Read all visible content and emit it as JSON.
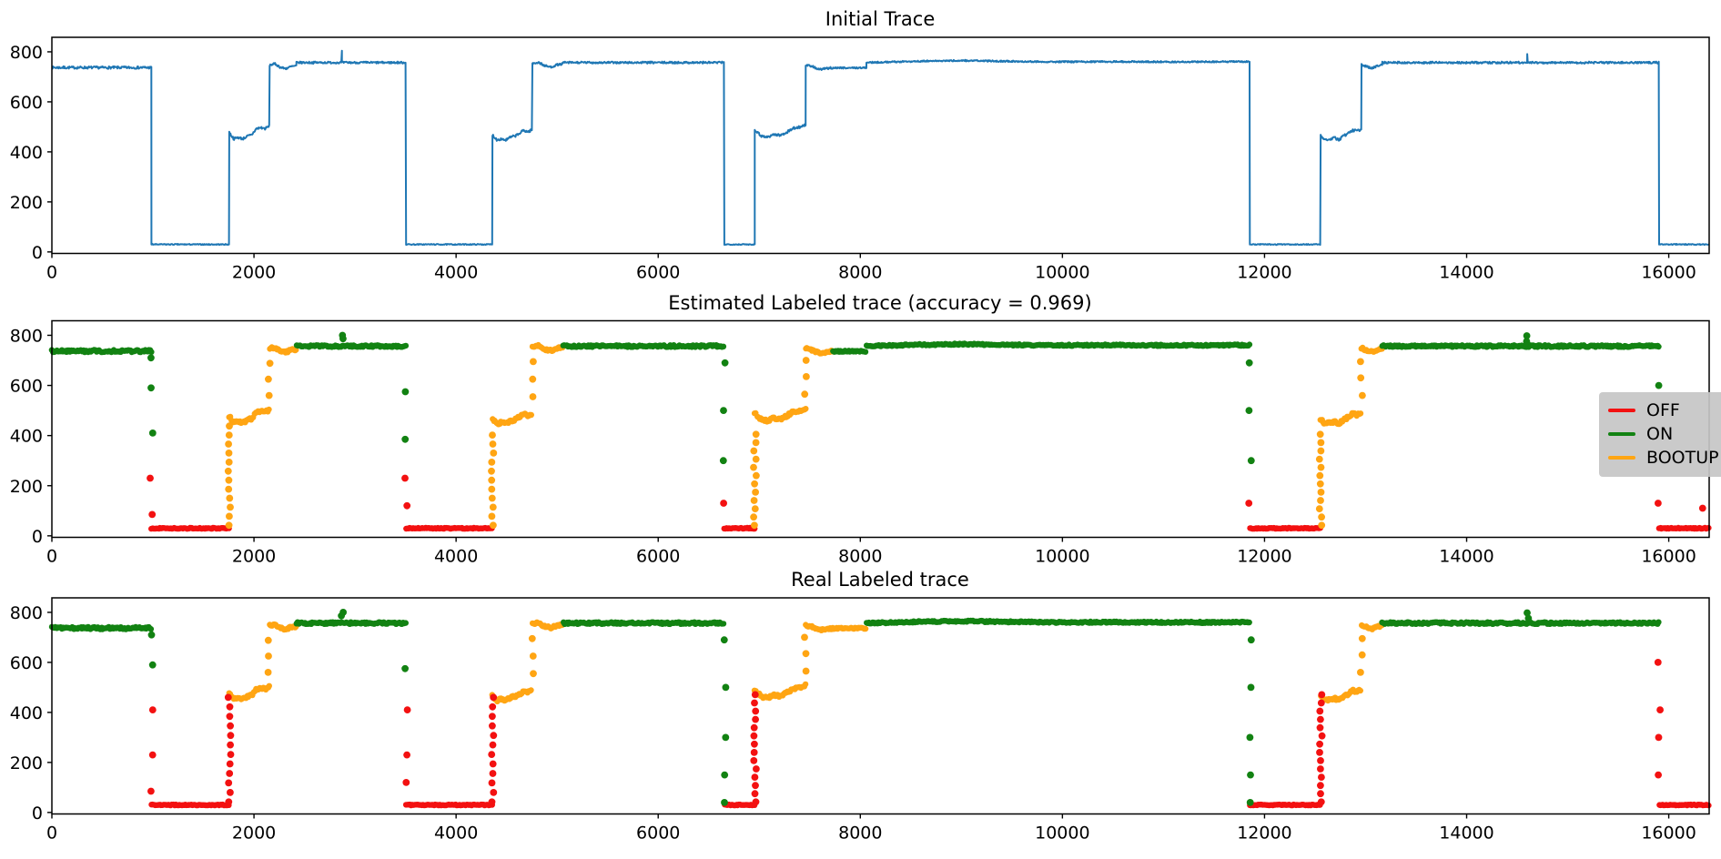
{
  "colors": {
    "line": "#1f77b4",
    "OFF": "#f31111",
    "ON": "#128212",
    "BOOTUP": "#ffa513",
    "axis": "#000000",
    "legend_bg": "#c5c5c5"
  },
  "chart_data": [
    {
      "type": "line",
      "title": "Initial Trace",
      "xlabel": "",
      "ylabel": "",
      "x_ticks": [
        0,
        2000,
        4000,
        6000,
        8000,
        10000,
        12000,
        14000,
        16000
      ],
      "y_ticks": [
        0,
        200,
        400,
        600,
        800
      ],
      "xlim": [
        0,
        16400
      ],
      "ylim": [
        -6,
        858
      ],
      "grid": false,
      "series_color_key": "line"
    },
    {
      "type": "scatter",
      "title": "Estimated Labeled trace (accuracy = 0.969)",
      "accuracy": 0.969,
      "x_ticks": [
        0,
        2000,
        4000,
        6000,
        8000,
        10000,
        12000,
        14000,
        16000
      ],
      "y_ticks": [
        0,
        200,
        400,
        600,
        800
      ],
      "xlim": [
        0,
        16400
      ],
      "ylim": [
        -6,
        858
      ],
      "grid": false,
      "labels_key": "est",
      "legend": {
        "position": "right",
        "items": [
          {
            "label": "OFF"
          },
          {
            "label": "ON"
          },
          {
            "label": "BOOTUP"
          }
        ]
      }
    },
    {
      "type": "scatter",
      "title": "Real Labeled trace",
      "x_ticks": [
        0,
        2000,
        4000,
        6000,
        8000,
        10000,
        12000,
        14000,
        16000
      ],
      "y_ticks": [
        0,
        200,
        400,
        600,
        800
      ],
      "xlim": [
        0,
        16400
      ],
      "ylim": [
        -6,
        858
      ],
      "grid": false,
      "labels_key": "real"
    }
  ],
  "trace": {
    "segments": [
      {
        "x0": 0,
        "x1": 985,
        "y": 737,
        "n": 5
      },
      {
        "x0": 985,
        "x1": 1755,
        "y": 30,
        "n": 2
      },
      {
        "x0": 1755,
        "x1": 2155,
        "y": [
          478,
          452,
          458,
          452,
          462,
          468,
          492,
          497,
          493,
          504
        ],
        "n": 5
      },
      {
        "x0": 2155,
        "x1": 2420,
        "y": [
          747,
          752,
          738,
          733,
          741,
          744
        ],
        "n": 4
      },
      {
        "x0": 2420,
        "x1": 3505,
        "y": 757,
        "n": 4,
        "spikes": [
          [
            2870,
            804
          ]
        ]
      },
      {
        "x0": 3505,
        "x1": 4360,
        "y": 30,
        "n": 2
      },
      {
        "x0": 4360,
        "x1": 4755,
        "y": [
          468,
          448,
          452,
          447,
          458,
          463,
          472,
          486,
          480,
          489
        ],
        "n": 5
      },
      {
        "x0": 4755,
        "x1": 5060,
        "y": [
          753,
          758,
          744,
          739,
          748,
          752
        ],
        "n": 4
      },
      {
        "x0": 5060,
        "x1": 6655,
        "y": 757,
        "n": 4
      },
      {
        "x0": 6655,
        "x1": 6955,
        "y": 30,
        "n": 2
      },
      {
        "x0": 6955,
        "x1": 7460,
        "y": [
          490,
          464,
          459,
          470,
          466,
          478,
          494,
          499,
          508
        ],
        "n": 5
      },
      {
        "x0": 7460,
        "x1": 7730,
        "y": [
          747,
          741,
          729,
          733,
          736
        ],
        "n": 4
      },
      {
        "x0": 7730,
        "x1": 8060,
        "y": 736,
        "n": 3
      },
      {
        "x0": 8060,
        "x1": 11855,
        "y": [
          757,
          762,
          765,
          762,
          760,
          761,
          760,
          760,
          761
        ],
        "n": 3
      },
      {
        "x0": 11855,
        "x1": 12555,
        "y": 30,
        "n": 2
      },
      {
        "x0": 12555,
        "x1": 12960,
        "y": [
          464,
          447,
          451,
          457,
          447,
          463,
          472,
          487,
          483,
          491
        ],
        "n": 5
      },
      {
        "x0": 12960,
        "x1": 13165,
        "y": [
          749,
          741,
          735,
          743,
          747
        ],
        "n": 4
      },
      {
        "x0": 13165,
        "x1": 15905,
        "y": 757,
        "n": 4,
        "spikes": [
          [
            14600,
            791
          ]
        ]
      },
      {
        "x0": 15905,
        "x1": 16400,
        "y": 30,
        "n": 2
      }
    ],
    "off_level": 30,
    "on_level": 757,
    "bootup_level": 470
  },
  "est": {
    "seg_labels": [
      "ON",
      "OFF",
      "BOOTUP",
      "BOOTUP",
      "ON",
      "OFF",
      "BOOTUP",
      "BOOTUP",
      "ON",
      "OFF",
      "BOOTUP",
      "BOOTUP",
      "ON",
      "ON",
      "OFF",
      "BOOTUP",
      "BOOTUP",
      "ON",
      "OFF"
    ],
    "columns": [
      {
        "x": 985,
        "dots": [
          [
            710,
            "ON"
          ],
          [
            590,
            "ON"
          ],
          [
            410,
            "ON"
          ],
          [
            230,
            "OFF"
          ],
          [
            85,
            "OFF"
          ]
        ]
      },
      {
        "x": 1757,
        "from": 42,
        "to": 440,
        "step": 36,
        "label": "BOOTUP"
      },
      {
        "x": 2153,
        "dots": [
          [
            560,
            "BOOTUP"
          ],
          [
            625,
            "BOOTUP"
          ],
          [
            688,
            "BOOTUP"
          ]
        ]
      },
      {
        "x": 2870,
        "dots": [
          [
            800,
            "ON"
          ],
          [
            786,
            "ON"
          ]
        ]
      },
      {
        "x": 3507,
        "dots": [
          [
            575,
            "ON"
          ],
          [
            385,
            "ON"
          ],
          [
            230,
            "OFF"
          ],
          [
            120,
            "OFF"
          ]
        ]
      },
      {
        "x": 4362,
        "from": 42,
        "to": 430,
        "step": 36,
        "label": "BOOTUP"
      },
      {
        "x": 4753,
        "dots": [
          [
            555,
            "BOOTUP"
          ],
          [
            625,
            "BOOTUP"
          ],
          [
            695,
            "BOOTUP"
          ]
        ]
      },
      {
        "x": 6657,
        "dots": [
          [
            690,
            "ON"
          ],
          [
            500,
            "ON"
          ],
          [
            300,
            "ON"
          ],
          [
            130,
            "OFF"
          ]
        ]
      },
      {
        "x": 6957,
        "from": 42,
        "to": 430,
        "step": 33,
        "label": "BOOTUP"
      },
      {
        "x": 7458,
        "dots": [
          [
            565,
            "BOOTUP"
          ],
          [
            635,
            "BOOTUP"
          ],
          [
            700,
            "BOOTUP"
          ]
        ]
      },
      {
        "x": 11857,
        "dots": [
          [
            690,
            "ON"
          ],
          [
            500,
            "ON"
          ],
          [
            300,
            "ON"
          ],
          [
            130,
            "OFF"
          ]
        ]
      },
      {
        "x": 12557,
        "from": 42,
        "to": 430,
        "step": 33,
        "label": "BOOTUP"
      },
      {
        "x": 12958,
        "dots": [
          [
            560,
            "BOOTUP"
          ],
          [
            630,
            "BOOTUP"
          ],
          [
            695,
            "BOOTUP"
          ]
        ]
      },
      {
        "x": 14600,
        "dots": [
          [
            798,
            "ON"
          ],
          [
            776,
            "ON"
          ]
        ]
      },
      {
        "x": 15907,
        "dots": [
          [
            600,
            "ON"
          ],
          [
            130,
            "OFF"
          ]
        ]
      },
      {
        "x": 16340,
        "dots": [
          [
            110,
            "OFF"
          ]
        ]
      }
    ]
  },
  "real": {
    "seg_labels": [
      "ON",
      "OFF",
      "BOOTUP",
      "BOOTUP",
      "ON",
      "OFF",
      "BOOTUP",
      "BOOTUP",
      "ON",
      "OFF",
      "BOOTUP",
      "BOOTUP",
      "BOOTUP",
      "ON",
      "OFF",
      "BOOTUP",
      "BOOTUP",
      "ON",
      "OFF"
    ],
    "columns": [
      {
        "x": 985,
        "dots": [
          [
            710,
            "ON"
          ],
          [
            590,
            "ON"
          ],
          [
            410,
            "OFF"
          ],
          [
            230,
            "OFF"
          ],
          [
            85,
            "OFF"
          ]
        ]
      },
      {
        "x": 1757,
        "from": 42,
        "to": 495,
        "step": 38,
        "label": "OFF"
      },
      {
        "x": 2153,
        "dots": [
          [
            560,
            "BOOTUP"
          ],
          [
            625,
            "BOOTUP"
          ],
          [
            688,
            "BOOTUP"
          ]
        ]
      },
      {
        "x": 2870,
        "dots": [
          [
            800,
            "ON"
          ],
          [
            786,
            "ON"
          ]
        ]
      },
      {
        "x": 3507,
        "dots": [
          [
            575,
            "ON"
          ],
          [
            410,
            "OFF"
          ],
          [
            230,
            "OFF"
          ],
          [
            120,
            "OFF"
          ]
        ]
      },
      {
        "x": 4362,
        "from": 42,
        "to": 460,
        "step": 38,
        "label": "OFF"
      },
      {
        "x": 4753,
        "dots": [
          [
            555,
            "BOOTUP"
          ],
          [
            625,
            "BOOTUP"
          ],
          [
            695,
            "BOOTUP"
          ]
        ]
      },
      {
        "x": 6657,
        "dots": [
          [
            690,
            "ON"
          ],
          [
            500,
            "ON"
          ],
          [
            300,
            "ON"
          ],
          [
            150,
            "ON"
          ],
          [
            40,
            "ON"
          ]
        ]
      },
      {
        "x": 6957,
        "from": 42,
        "to": 500,
        "step": 33,
        "label": "OFF"
      },
      {
        "x": 7458,
        "dots": [
          [
            565,
            "BOOTUP"
          ],
          [
            635,
            "BOOTUP"
          ],
          [
            700,
            "BOOTUP"
          ]
        ]
      },
      {
        "x": 11857,
        "dots": [
          [
            690,
            "ON"
          ],
          [
            500,
            "ON"
          ],
          [
            300,
            "ON"
          ],
          [
            150,
            "ON"
          ],
          [
            40,
            "ON"
          ]
        ]
      },
      {
        "x": 12557,
        "from": 42,
        "to": 500,
        "step": 33,
        "label": "OFF"
      },
      {
        "x": 12958,
        "dots": [
          [
            560,
            "BOOTUP"
          ],
          [
            630,
            "BOOTUP"
          ],
          [
            695,
            "BOOTUP"
          ]
        ]
      },
      {
        "x": 14600,
        "dots": [
          [
            798,
            "ON"
          ],
          [
            776,
            "ON"
          ]
        ]
      },
      {
        "x": 15907,
        "dots": [
          [
            600,
            "OFF"
          ],
          [
            410,
            "OFF"
          ],
          [
            300,
            "OFF"
          ],
          [
            150,
            "OFF"
          ]
        ]
      }
    ]
  }
}
